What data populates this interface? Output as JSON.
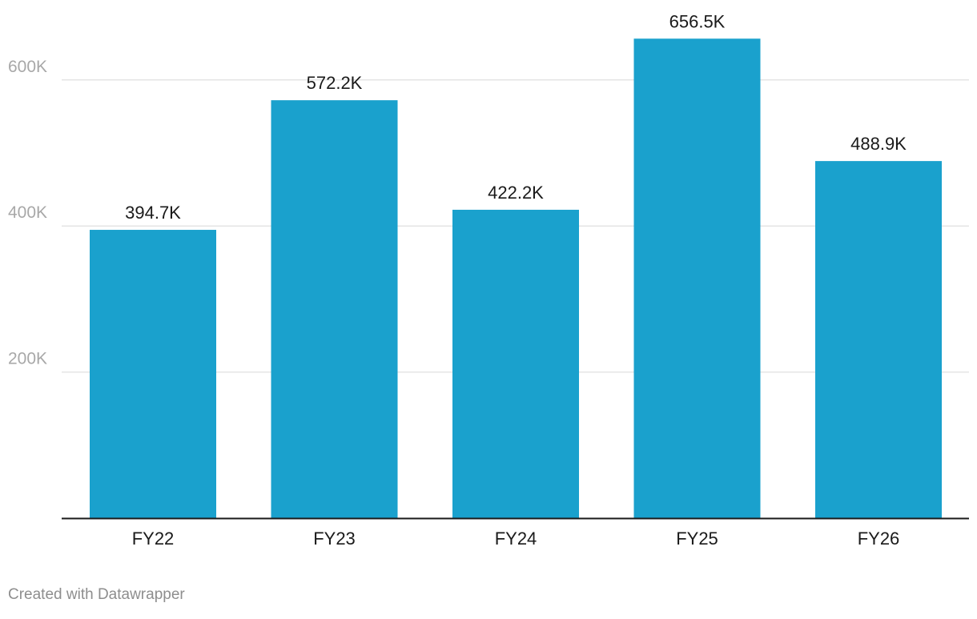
{
  "chart_data": {
    "type": "bar",
    "title": "",
    "xlabel": "",
    "ylabel": "",
    "categories": [
      "FY22",
      "FY23",
      "FY24",
      "FY25",
      "FY26"
    ],
    "values": [
      394700,
      572200,
      422200,
      656500,
      488900
    ],
    "value_labels": [
      "394.7K",
      "572.2K",
      "422.2K",
      "656.5K",
      "488.9K"
    ],
    "ylim": [
      0,
      660000
    ],
    "yticks": [
      200000,
      400000,
      600000
    ],
    "ytick_labels": [
      "200K",
      "400K",
      "600K"
    ],
    "grid": true,
    "legend": "none",
    "bar_color": "#1aa1cd",
    "grid_color": "#e4e4e4",
    "axis_color": "#1a1a1a"
  },
  "footer": {
    "credit": "Created with Datawrapper"
  }
}
